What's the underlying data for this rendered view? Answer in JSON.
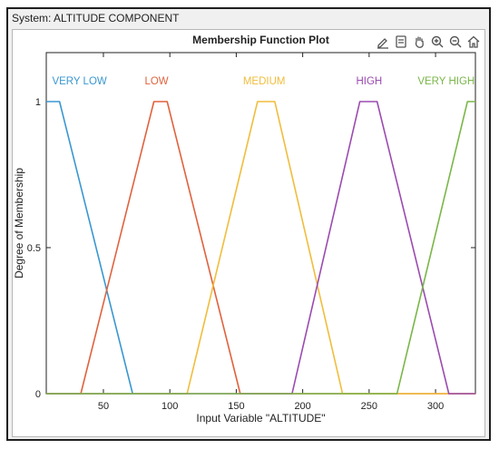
{
  "window": {
    "title": "System: ALTITUDE COMPONENT"
  },
  "toolbar": {
    "icons": [
      "edit-pen-icon",
      "data-tips-icon",
      "pan-hand-icon",
      "zoom-in-icon",
      "zoom-out-icon",
      "home-icon"
    ]
  },
  "chart_data": {
    "type": "line",
    "title": "Membership Function Plot",
    "xlabel": "Input Variable \"ALTITUDE\"",
    "ylabel": "Degree of Membership",
    "xlim": [
      7,
      330
    ],
    "ylim": [
      0,
      1
    ],
    "xticks": [
      50,
      100,
      150,
      200,
      250,
      300
    ],
    "yticks": [
      0,
      0.5,
      1
    ],
    "grid": false,
    "legend": "labels above curves",
    "series": [
      {
        "name": "VERY LOW",
        "color": "#3a97d0",
        "label_x": 32,
        "x": [
          7,
          17,
          72
        ],
        "y": [
          1,
          1,
          0
        ]
      },
      {
        "name": "LOW",
        "color": "#e0623e",
        "label_x": 90,
        "x": [
          7,
          33,
          88,
          98,
          153,
          330
        ],
        "y": [
          0,
          0,
          1,
          1,
          0,
          0
        ]
      },
      {
        "name": "MEDIUM",
        "color": "#f0bd3c",
        "label_x": 171,
        "x": [
          7,
          113,
          166,
          179,
          230,
          330
        ],
        "y": [
          0,
          0,
          1,
          1,
          0,
          0
        ]
      },
      {
        "name": "HIGH",
        "color": "#9b4bb0",
        "label_x": 250,
        "x": [
          7,
          192,
          243,
          256,
          310,
          330
        ],
        "y": [
          0,
          0,
          1,
          1,
          0,
          0
        ]
      },
      {
        "name": "VERY HIGH",
        "color": "#7ab648",
        "label_x": 308,
        "x": [
          7,
          271,
          324,
          330
        ],
        "y": [
          0,
          0,
          1,
          1
        ]
      }
    ]
  }
}
